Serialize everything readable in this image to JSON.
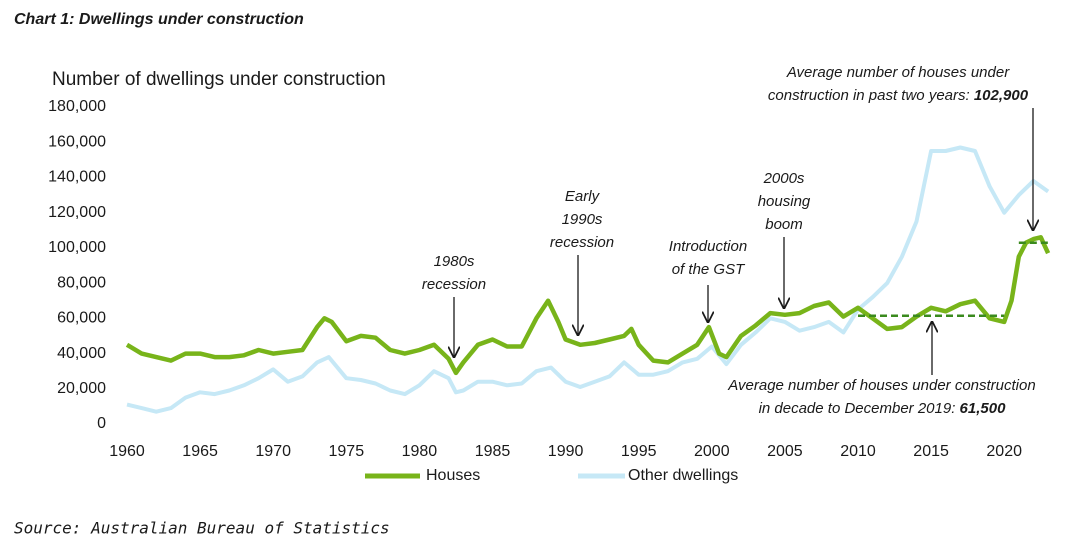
{
  "chart_data": {
    "type": "line",
    "title": "Chart 1: Dwellings under construction",
    "y_axis_title": "Number of dwellings under construction",
    "source": "Source: Australian Bureau of Statistics",
    "xlim": [
      1960,
      2024
    ],
    "xticks": [
      1960,
      1965,
      1970,
      1975,
      1980,
      1985,
      1990,
      1995,
      2000,
      2005,
      2010,
      2015,
      2020
    ],
    "ylim": [
      0,
      180000
    ],
    "yticks": [
      0,
      {
        "value": 20000,
        "label": "20,000"
      },
      {
        "value": 40000,
        "label": "40,000"
      },
      {
        "value": 60000,
        "label": "60,000"
      },
      {
        "value": 80000,
        "label": "80,000"
      },
      {
        "value": 100000,
        "label": "100,000"
      },
      {
        "value": 120000,
        "label": "120,000"
      },
      {
        "value": 140000,
        "label": "140,000"
      },
      {
        "value": 160000,
        "label": "160,000"
      },
      {
        "value": 180000,
        "label": "180,000"
      }
    ],
    "grid": false,
    "legend": "bottom",
    "series": [
      {
        "name": "Houses",
        "color": "#78b41a",
        "x": [
          1960,
          1961,
          1962,
          1963,
          1964,
          1965,
          1966,
          1967,
          1968,
          1969,
          1970,
          1971,
          1972,
          1973,
          1973.5,
          1974,
          1975,
          1976,
          1977,
          1978,
          1979,
          1980,
          1981,
          1982,
          1982.5,
          1983,
          1984,
          1985,
          1986,
          1987,
          1988,
          1988.8,
          1989.5,
          1990,
          1991,
          1992,
          1993,
          1994,
          1994.5,
          1995,
          1996,
          1997,
          1998,
          1999,
          1999.8,
          2000.5,
          2001,
          2002,
          2003,
          2004,
          2005,
          2006,
          2007,
          2008,
          2009,
          2010,
          2011,
          2012,
          2013,
          2014,
          2015,
          2016,
          2017,
          2018,
          2019,
          2020,
          2020.5,
          2021,
          2021.5,
          2022,
          2022.5,
          2023
        ],
        "values": [
          45000,
          40000,
          38000,
          36000,
          40000,
          40000,
          38000,
          38000,
          39000,
          42000,
          40000,
          41000,
          42000,
          55000,
          60000,
          58000,
          47000,
          50000,
          49000,
          42000,
          40000,
          42000,
          45000,
          37000,
          29000,
          35000,
          45000,
          48000,
          44000,
          44000,
          60000,
          70000,
          58000,
          48000,
          45000,
          46000,
          48000,
          50000,
          54000,
          45000,
          36000,
          35000,
          40000,
          45000,
          55000,
          40000,
          38000,
          50000,
          56000,
          63000,
          62000,
          63000,
          67000,
          69000,
          61000,
          66000,
          60000,
          54000,
          55000,
          61000,
          66000,
          64000,
          68000,
          70000,
          60000,
          58000,
          70000,
          95000,
          103000,
          105000,
          106000,
          97000
        ]
      },
      {
        "name": "Other dwellings",
        "color": "#c6e8f6",
        "x": [
          1960,
          1961,
          1962,
          1963,
          1964,
          1965,
          1966,
          1967,
          1968,
          1969,
          1970,
          1971,
          1972,
          1973,
          1973.8,
          1975,
          1976,
          1977,
          1978,
          1979,
          1980,
          1981,
          1982,
          1982.5,
          1983,
          1984,
          1985,
          1986,
          1987,
          1988,
          1989,
          1990,
          1991,
          1992,
          1993,
          1994,
          1995,
          1996,
          1997,
          1998,
          1999,
          2000,
          2001,
          2002,
          2003,
          2004,
          2005,
          2006,
          2007,
          2008,
          2009,
          2010,
          2011,
          2012,
          2013,
          2014,
          2015,
          2016,
          2017,
          2018,
          2019,
          2020,
          2021,
          2022,
          2023
        ],
        "values": [
          11000,
          9000,
          7000,
          9000,
          15000,
          18000,
          17000,
          19000,
          22000,
          26000,
          31000,
          24000,
          27000,
          35000,
          38000,
          26000,
          25000,
          23000,
          19000,
          17000,
          22000,
          30000,
          26000,
          18000,
          19000,
          24000,
          24000,
          22000,
          23000,
          30000,
          32000,
          24000,
          21000,
          24000,
          27000,
          35000,
          28000,
          28000,
          30000,
          35000,
          37000,
          44000,
          34000,
          45000,
          52000,
          60000,
          58000,
          53000,
          55000,
          58000,
          52000,
          65000,
          72000,
          80000,
          95000,
          115000,
          155000,
          155000,
          157000,
          155000,
          135000,
          120000,
          130000,
          138000,
          132000
        ]
      }
    ],
    "reference_lines": [
      {
        "value": 61500,
        "label": "61,500",
        "x_range": [
          2010,
          2020
        ],
        "color": "#3a8a1e"
      },
      {
        "value": 102900,
        "label": "102,900",
        "x_range": [
          2021,
          2023
        ],
        "color": "#3a8a1e"
      }
    ],
    "annotations": [
      {
        "lines": [
          "1980s",
          "recession"
        ]
      },
      {
        "lines": [
          "Early",
          "1990s",
          "recession"
        ]
      },
      {
        "lines": [
          "Introduction",
          "of the GST"
        ]
      },
      {
        "lines": [
          "2000s",
          "housing",
          "boom"
        ]
      },
      {
        "lines": [
          "Average number of houses under",
          "construction in past two years: "
        ]
      },
      {
        "lines": [
          "Average number of houses under construction",
          "in decade to December 2019: "
        ]
      }
    ]
  }
}
